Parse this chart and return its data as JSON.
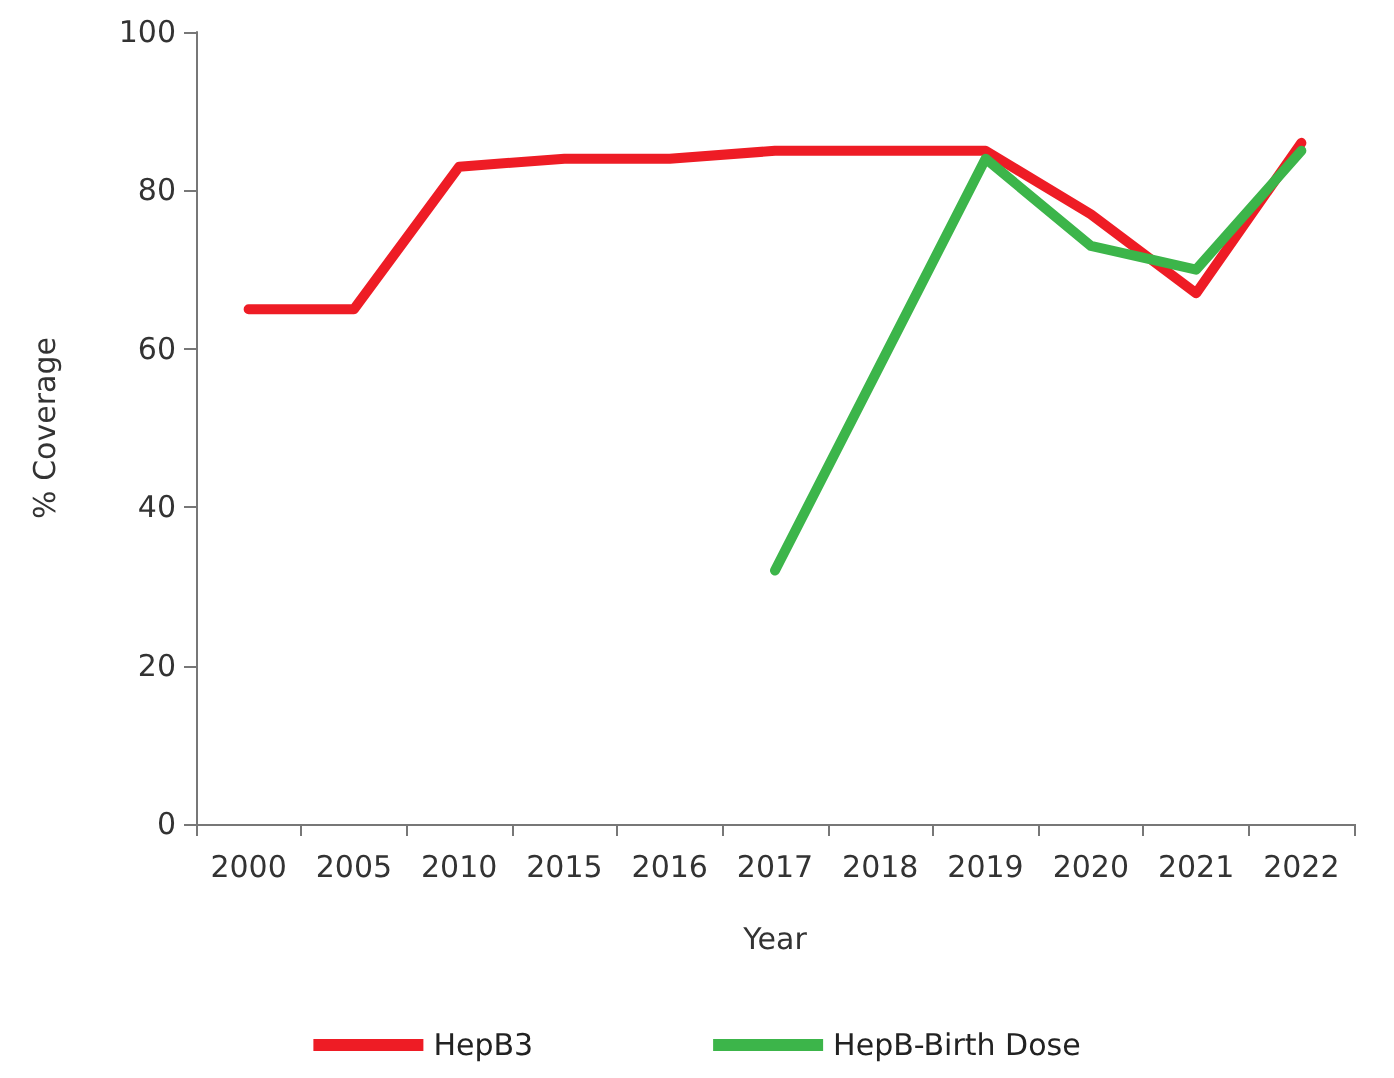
{
  "chart_data": {
    "type": "line",
    "xlabel": "Year",
    "ylabel": "% Coverage",
    "categories": [
      "2000",
      "2005",
      "2010",
      "2015",
      "2016",
      "2017",
      "2018",
      "2019",
      "2020",
      "2021",
      "2022"
    ],
    "series": [
      {
        "name": "HepB3",
        "color": "#ee1c25",
        "values": [
          65,
          65,
          83,
          84,
          84,
          85,
          85,
          85,
          77,
          67,
          86
        ]
      },
      {
        "name": "HepB-Birth Dose",
        "color": "#3cb54a",
        "values": [
          null,
          null,
          null,
          null,
          null,
          32,
          58,
          84,
          73,
          70,
          85
        ]
      }
    ],
    "ylim": [
      0,
      100
    ],
    "yticks": [
      0,
      20,
      40,
      60,
      80,
      100
    ],
    "grid": false,
    "legend": "bottom",
    "marker": "none",
    "line_style": "solid"
  }
}
